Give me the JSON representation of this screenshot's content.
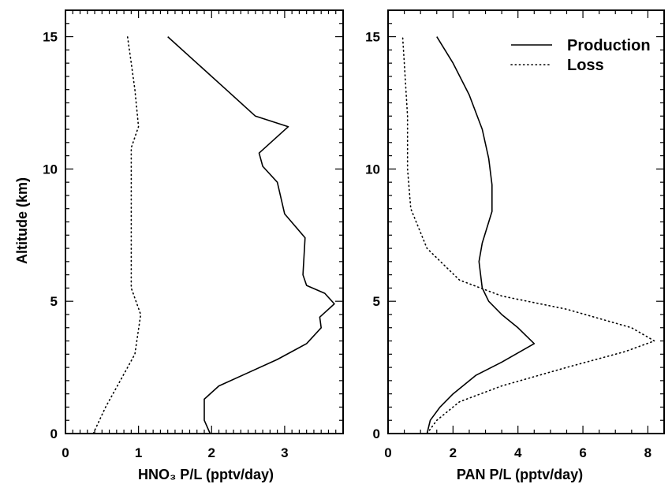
{
  "figure": {
    "ylabel": "Altitude (km)"
  },
  "chart_data": [
    {
      "type": "line",
      "xlabel": "HNO₃ P/L (pptv/day)",
      "ylabel": "Altitude (km)",
      "xlim": [
        0,
        3.8
      ],
      "ylim": [
        0,
        16
      ],
      "xticks": [
        "0",
        "1",
        "2",
        "3"
      ],
      "yticks": [
        "0",
        "5",
        "10",
        "15"
      ],
      "series": [
        {
          "name": "Production",
          "style": "solid",
          "points": [
            [
              1.98,
              0
            ],
            [
              1.9,
              0.5
            ],
            [
              1.9,
              1.3
            ],
            [
              2.1,
              1.8
            ],
            [
              2.5,
              2.3
            ],
            [
              2.9,
              2.8
            ],
            [
              3.3,
              3.4
            ],
            [
              3.5,
              4.0
            ],
            [
              3.48,
              4.4
            ],
            [
              3.68,
              4.9
            ],
            [
              3.55,
              5.3
            ],
            [
              3.3,
              5.6
            ],
            [
              3.25,
              6.0
            ],
            [
              3.28,
              7.4
            ],
            [
              3.0,
              8.3
            ],
            [
              2.9,
              9.5
            ],
            [
              2.7,
              10.1
            ],
            [
              2.65,
              10.6
            ],
            [
              3.05,
              11.6
            ],
            [
              2.6,
              12.0
            ],
            [
              2.2,
              13.0
            ],
            [
              1.4,
              15.0
            ]
          ]
        },
        {
          "name": "Loss",
          "style": "dotted",
          "points": [
            [
              0.38,
              0
            ],
            [
              0.55,
              1.0
            ],
            [
              0.75,
              2.0
            ],
            [
              0.95,
              3.0
            ],
            [
              1.03,
              4.5
            ],
            [
              0.9,
              5.5
            ],
            [
              0.9,
              7.0
            ],
            [
              0.9,
              9.5
            ],
            [
              0.9,
              10.8
            ],
            [
              1.0,
              11.6
            ],
            [
              0.95,
              13.0
            ],
            [
              0.9,
              14.0
            ],
            [
              0.85,
              15.0
            ]
          ]
        }
      ]
    },
    {
      "type": "line",
      "xlabel": "PAN P/L (pptv/day)",
      "ylabel": "",
      "xlim": [
        0,
        8.5
      ],
      "ylim": [
        0,
        16
      ],
      "xticks": [
        "0",
        "2",
        "4",
        "6",
        "8"
      ],
      "yticks": [
        "0",
        "5",
        "10",
        "15"
      ],
      "legend_position": "top-right",
      "series": [
        {
          "name": "Production",
          "style": "solid",
          "points": [
            [
              1.2,
              0
            ],
            [
              1.3,
              0.5
            ],
            [
              1.6,
              1.0
            ],
            [
              2.0,
              1.5
            ],
            [
              2.7,
              2.2
            ],
            [
              3.5,
              2.7
            ],
            [
              4.5,
              3.4
            ],
            [
              4.0,
              4.0
            ],
            [
              3.5,
              4.5
            ],
            [
              3.1,
              5.0
            ],
            [
              2.9,
              5.5
            ],
            [
              2.8,
              6.5
            ],
            [
              2.9,
              7.2
            ],
            [
              3.2,
              8.4
            ],
            [
              3.2,
              9.4
            ],
            [
              3.1,
              10.4
            ],
            [
              2.9,
              11.5
            ],
            [
              2.5,
              12.8
            ],
            [
              2.0,
              14.0
            ],
            [
              1.5,
              15.0
            ]
          ]
        },
        {
          "name": "Loss",
          "style": "dotted",
          "points": [
            [
              1.2,
              0
            ],
            [
              1.5,
              0.5
            ],
            [
              2.2,
              1.2
            ],
            [
              3.5,
              1.8
            ],
            [
              5.5,
              2.5
            ],
            [
              7.3,
              3.1
            ],
            [
              8.2,
              3.5
            ],
            [
              7.5,
              4.0
            ],
            [
              5.5,
              4.7
            ],
            [
              3.5,
              5.2
            ],
            [
              2.2,
              5.8
            ],
            [
              1.2,
              7.0
            ],
            [
              0.7,
              8.5
            ],
            [
              0.6,
              10.0
            ],
            [
              0.6,
              12.0
            ],
            [
              0.5,
              14.0
            ],
            [
              0.45,
              15.0
            ]
          ]
        }
      ]
    }
  ]
}
